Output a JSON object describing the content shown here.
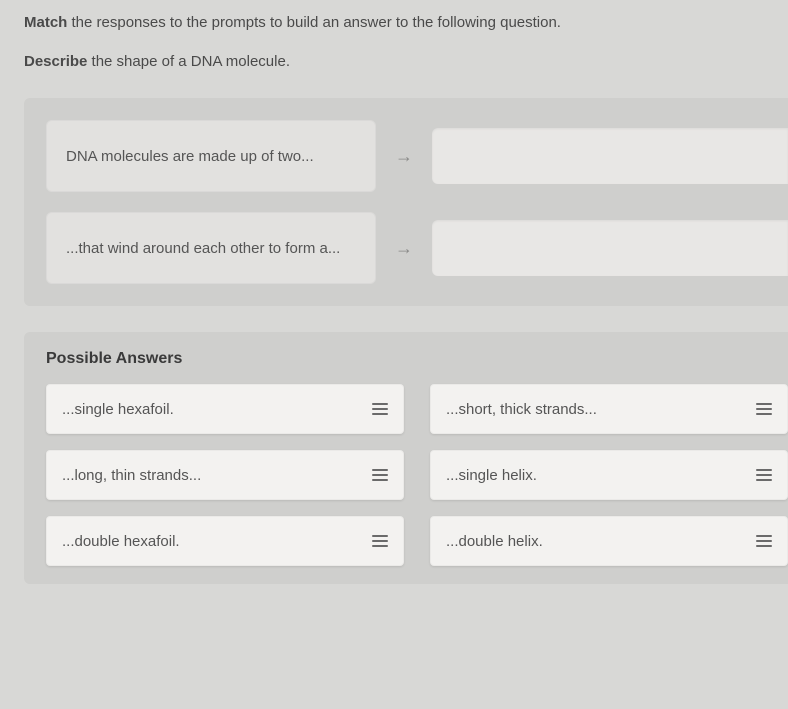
{
  "instruction": {
    "prefix": "Match",
    "rest": " the responses to the prompts to build an answer to the following question."
  },
  "question": {
    "prefix": "Describe",
    "rest": " the shape of a DNA molecule."
  },
  "prompts": [
    {
      "text": "DNA molecules are made up of two..."
    },
    {
      "text": "...that wind around each other to form a..."
    }
  ],
  "answers_title": "Possible Answers",
  "answers": [
    {
      "text": "...single hexafoil."
    },
    {
      "text": "...short, thick strands..."
    },
    {
      "text": "...long, thin strands..."
    },
    {
      "text": "...single helix."
    },
    {
      "text": "...double hexafoil."
    },
    {
      "text": "...double helix."
    }
  ],
  "colors": {
    "page_bg": "#d8d8d6",
    "panel_bg": "#cfcfcd",
    "prompt_bg": "#e2e1df",
    "drop_bg": "#e8e7e5",
    "card_bg": "#f3f2f0",
    "text": "#3a3a3a",
    "muted": "#555",
    "grip": "#6a6a6a",
    "arrow": "#8a8a88"
  }
}
